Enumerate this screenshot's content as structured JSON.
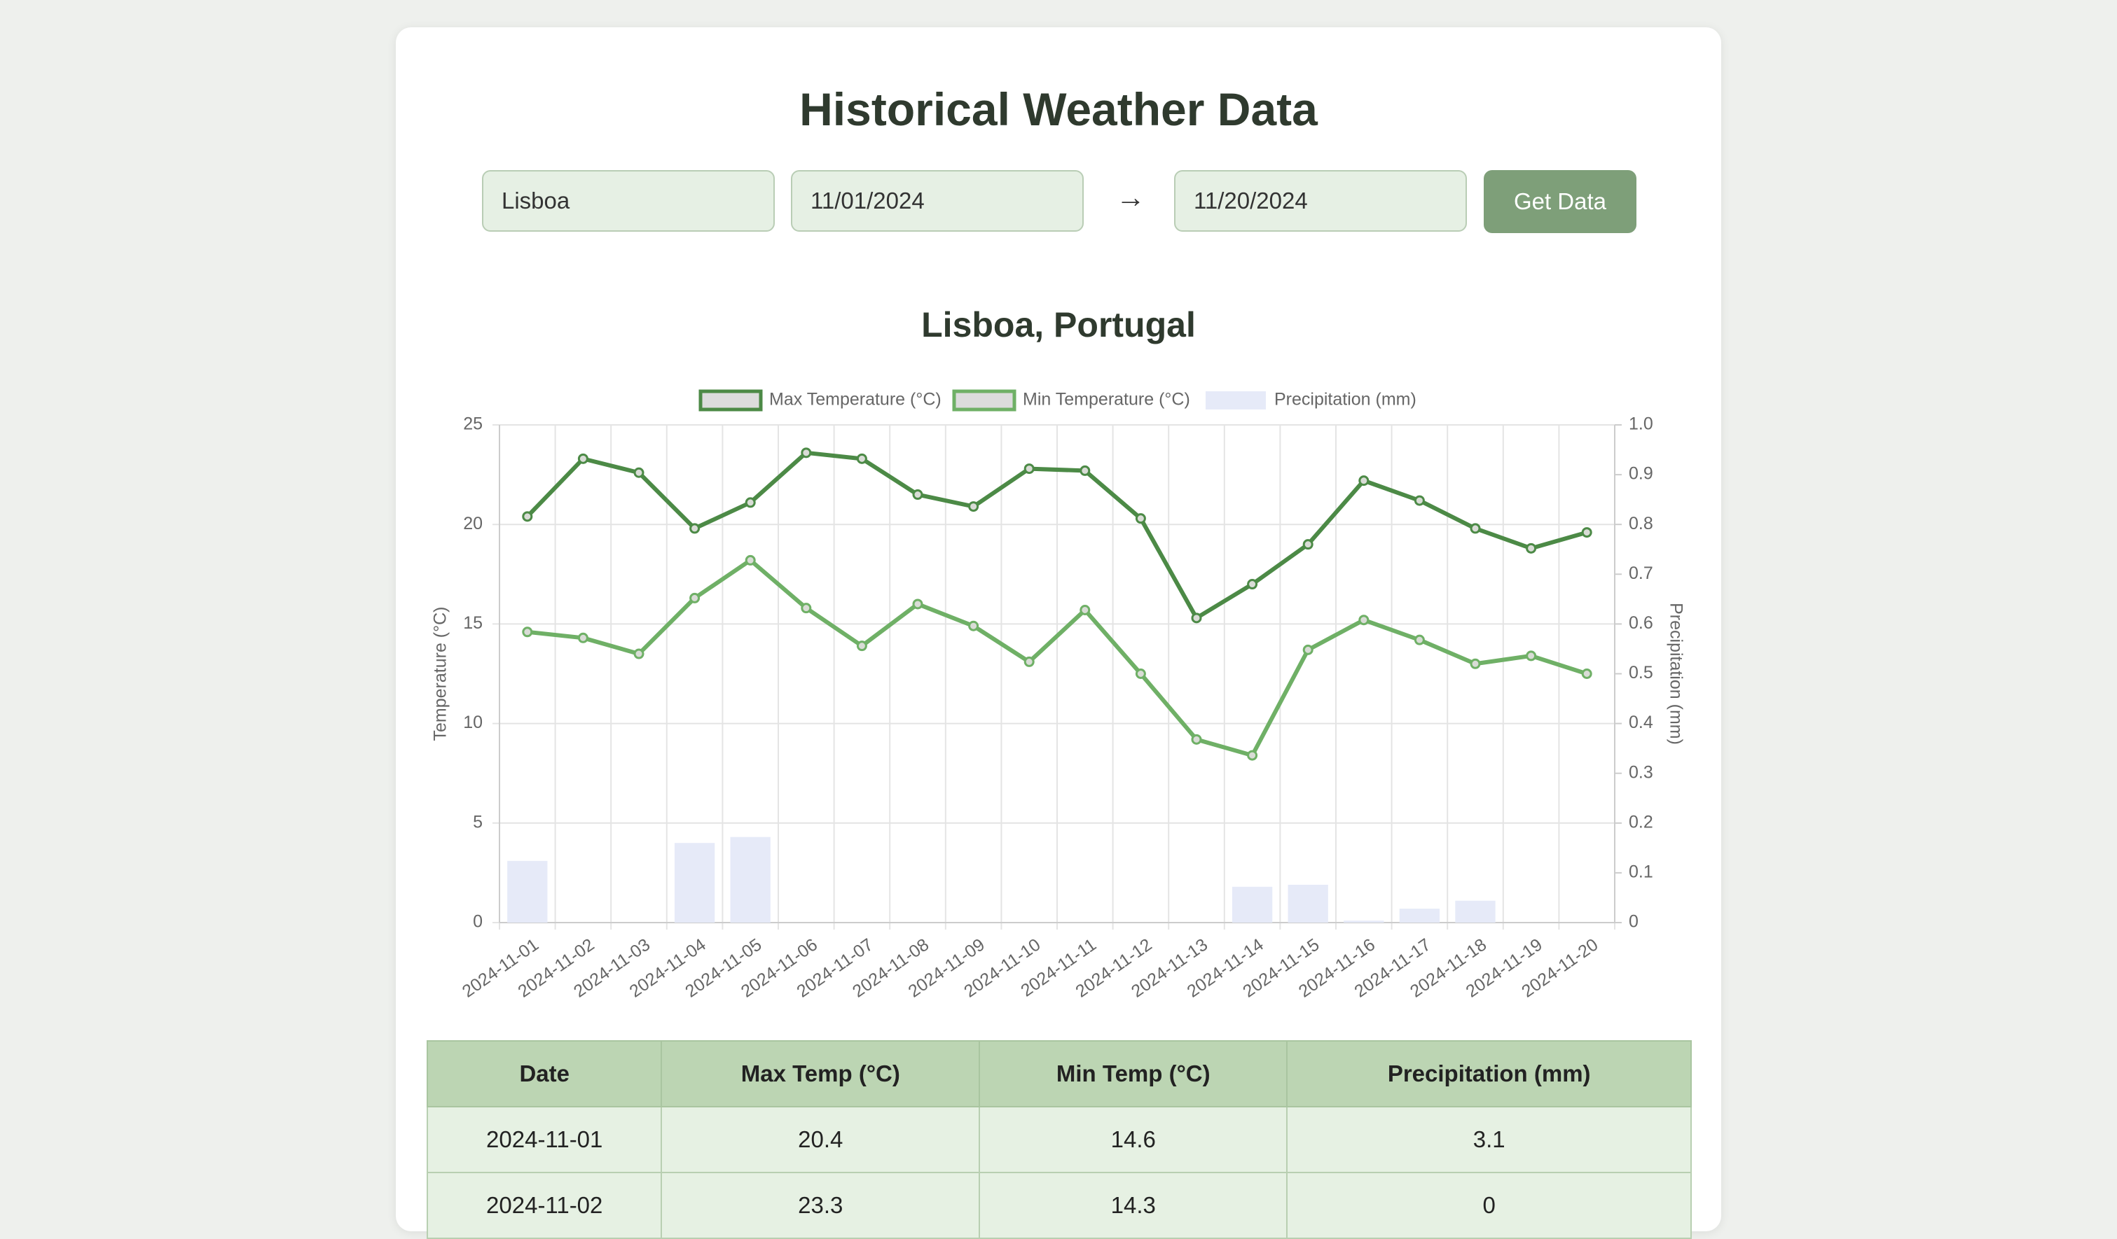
{
  "header": {
    "title": "Historical Weather Data"
  },
  "form": {
    "city": "Lisboa",
    "start_date": "11/01/2024",
    "arrow": "→",
    "end_date": "11/20/2024",
    "button": "Get Data"
  },
  "chart_data": {
    "type": "combo",
    "title": "Lisboa, Portugal",
    "categories": [
      "2024-11-01",
      "2024-11-02",
      "2024-11-03",
      "2024-11-04",
      "2024-11-05",
      "2024-11-06",
      "2024-11-07",
      "2024-11-08",
      "2024-11-09",
      "2024-11-10",
      "2024-11-11",
      "2024-11-12",
      "2024-11-13",
      "2024-11-14",
      "2024-11-15",
      "2024-11-16",
      "2024-11-17",
      "2024-11-18",
      "2024-11-19",
      "2024-11-20"
    ],
    "series": [
      {
        "name": "Max Temperature (°C)",
        "type": "line",
        "color": "#4c8a46",
        "values": [
          20.4,
          23.3,
          22.6,
          19.8,
          21.1,
          23.6,
          23.3,
          21.5,
          20.9,
          22.8,
          22.7,
          20.3,
          15.3,
          17.0,
          19.0,
          22.2,
          21.2,
          19.8,
          18.8,
          19.6
        ]
      },
      {
        "name": "Min Temperature (°C)",
        "type": "line",
        "color": "#6fb066",
        "values": [
          14.6,
          14.3,
          13.5,
          16.3,
          18.2,
          15.8,
          13.9,
          16.0,
          14.9,
          13.1,
          15.7,
          12.5,
          9.2,
          8.4,
          13.7,
          15.2,
          14.2,
          13.0,
          13.4,
          12.5
        ]
      },
      {
        "name": "Precipitation (mm)",
        "type": "bar",
        "color": "#e6eaf8",
        "values": [
          3.1,
          0,
          0,
          4.0,
          4.3,
          0,
          0,
          0,
          0,
          0,
          0,
          0,
          0,
          1.8,
          1.9,
          0.1,
          0.7,
          1.1,
          0,
          0
        ]
      }
    ],
    "ylabel": "Temperature (°C)",
    "y2label": "Precipitation (mm)",
    "ylim": [
      0,
      25
    ],
    "yticks": [
      0,
      5,
      10,
      15,
      20,
      25
    ],
    "y2lim": [
      0,
      1
    ],
    "y2ticks": [
      0,
      0.1,
      0.2,
      0.3,
      0.4,
      0.5,
      0.6,
      0.7,
      0.8,
      0.9,
      {
        "value": 1,
        "label": "1.0"
      }
    ],
    "grid": true,
    "legend": "top"
  },
  "table": {
    "headers": [
      "Date",
      "Max Temp (°C)",
      "Min Temp (°C)",
      "Precipitation (mm)"
    ],
    "rows": [
      [
        "2024-11-01",
        20.4,
        14.6,
        3.1
      ],
      [
        "2024-11-02",
        23.3,
        14.3,
        0
      ]
    ]
  }
}
